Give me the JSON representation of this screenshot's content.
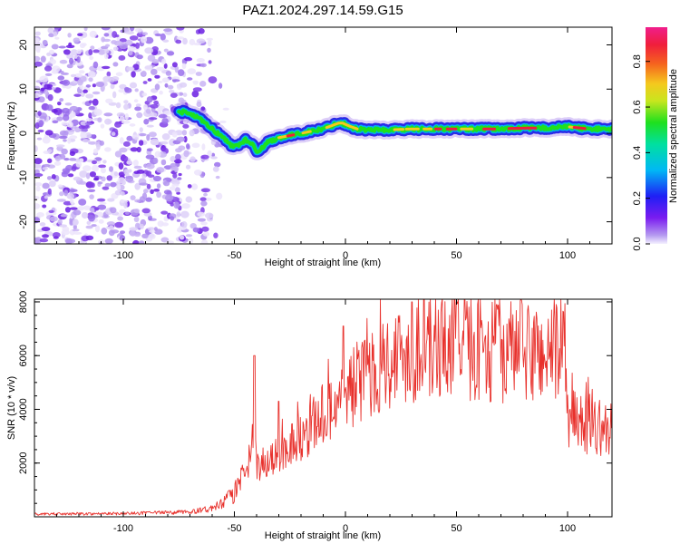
{
  "title": "PAZ1.2024.297.14.59.G15",
  "chart_data": [
    {
      "type": "heatmap",
      "xlabel": "Height of straight line (km)",
      "ylabel": "Frequency (Hz)",
      "xlim": [
        -140,
        120
      ],
      "ylim": [
        -25,
        24
      ],
      "x_ticks": [
        -100,
        -50,
        0,
        50,
        100
      ],
      "y_ticks": [
        -20,
        -10,
        0,
        10,
        20
      ],
      "colorbar": {
        "label": "Normalized spectral amplitude",
        "range": [
          0,
          0.95
        ],
        "ticks": [
          "0.0",
          "0.2",
          "0.4",
          "0.6",
          "0.8"
        ],
        "tick_values": [
          0,
          0.2,
          0.4,
          0.6,
          0.8
        ],
        "colormap": "rainbow (purple-blue-cyan-green-yellow-red-magenta)"
      },
      "ridge": {
        "x": [
          -75,
          -70,
          -65,
          -60,
          -55,
          -52,
          -50,
          -48,
          -45,
          -42,
          -40,
          -38,
          -35,
          -30,
          -25,
          -20,
          -15,
          -10,
          -5,
          -2,
          0,
          5,
          10,
          20,
          30,
          40,
          50,
          60,
          70,
          80,
          90,
          100,
          110,
          120
        ],
        "y": [
          5,
          4.5,
          3,
          1,
          -1,
          -2.5,
          -3,
          -2.5,
          -1.5,
          -2.5,
          -4,
          -3.5,
          -2,
          -1,
          -0.5,
          0,
          0.5,
          1,
          2,
          2.5,
          2,
          1,
          0.8,
          0.8,
          1,
          1,
          1,
          1,
          1,
          1.2,
          1.2,
          1.5,
          1,
          1
        ]
      },
      "noise_region": {
        "x_range": [
          -140,
          -57
        ],
        "description_level": "low-amplitude purple scatter"
      }
    },
    {
      "type": "line",
      "xlabel": "Height of straight line (km)",
      "ylabel": "SNR (10 * v/v)",
      "xlim": [
        -140,
        120
      ],
      "ylim": [
        0,
        8100
      ],
      "x_ticks": [
        -100,
        -50,
        0,
        50,
        100
      ],
      "y_ticks": [
        2000,
        4000,
        6000,
        8000
      ],
      "color": "#e8322d",
      "envelope": {
        "x": [
          -140,
          -100,
          -70,
          -60,
          -55,
          -50,
          -45,
          -43,
          -41,
          -40,
          -38,
          -35,
          -30,
          -25,
          -20,
          -15,
          -10,
          -5,
          0,
          5,
          10,
          15,
          20,
          25,
          30,
          35,
          40,
          50,
          60,
          70,
          80,
          90,
          95,
          98,
          100,
          105,
          110,
          115,
          120
        ],
        "y": [
          100,
          120,
          180,
          300,
          500,
          900,
          1500,
          2200,
          3000,
          1800,
          2000,
          2000,
          2300,
          2700,
          3000,
          3400,
          3800,
          4200,
          4600,
          5000,
          5200,
          5600,
          5900,
          6000,
          6200,
          6200,
          6300,
          6300,
          6300,
          6200,
          6100,
          6100,
          6100,
          6300,
          3700,
          3500,
          3400,
          3300,
          3200
        ]
      },
      "peaks": [
        {
          "x": -41,
          "y": 6000
        },
        {
          "x": -30,
          "y": 4300
        },
        {
          "x": -1,
          "y": 7100
        },
        {
          "x": 30,
          "y": 8000
        },
        {
          "x": 50,
          "y": 8000
        },
        {
          "x": 68,
          "y": 7900
        }
      ]
    }
  ]
}
